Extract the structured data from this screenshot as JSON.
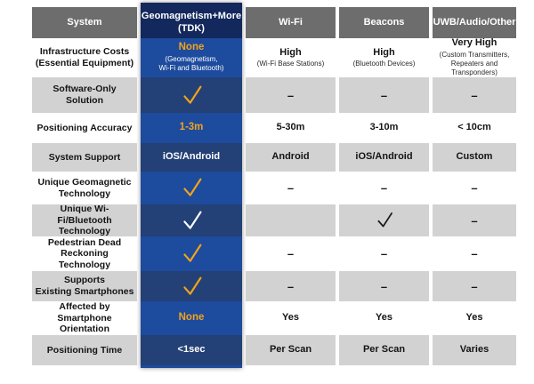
{
  "colors": {
    "header_gray": "#6d6d6d",
    "tdk_navy": "#13285c",
    "tdk_blue_light": "#1d4b9e",
    "tdk_blue_dark": "#234176",
    "row_gray": "#d2d2d2",
    "row_white": "#ffffff",
    "accent_orange": "#f2a31b",
    "text_dark": "#141414",
    "check_orange": "#f2a31b",
    "check_white": "#ffffff",
    "check_black": "#1a1a1a"
  },
  "dash_glyph": "–",
  "chart_data": {
    "type": "table",
    "columns": [
      {
        "id": "system",
        "label": "System"
      },
      {
        "id": "tdk",
        "label": "Geomagnetism+More\n(TDK)"
      },
      {
        "id": "wifi",
        "label": "Wi-Fi"
      },
      {
        "id": "beacons",
        "label": "Beacons"
      },
      {
        "id": "uwb",
        "label": "UWB/Audio/Other"
      }
    ],
    "rows": [
      {
        "label": "Infrastructure Costs\n(Essential Equipment)",
        "cells": [
          {
            "type": "text",
            "value": "None",
            "accent": true,
            "note": "(Geomagnetism,\nWi-Fi and Bluetooth)"
          },
          {
            "type": "text",
            "value": "High",
            "note": "(Wi-Fi Base Stations)"
          },
          {
            "type": "text",
            "value": "High",
            "note": "(Bluetooth Devices)"
          },
          {
            "type": "text",
            "value": "Very High",
            "note": "(Custom Transmitters,\nRepeaters and Transponders)"
          }
        ]
      },
      {
        "label": "Software-Only Solution",
        "cells": [
          {
            "type": "check",
            "color": "orange"
          },
          {
            "type": "dash"
          },
          {
            "type": "dash"
          },
          {
            "type": "dash"
          }
        ]
      },
      {
        "label": "Positioning Accuracy",
        "cells": [
          {
            "type": "text",
            "value": "1-3m",
            "accent": true
          },
          {
            "type": "text",
            "value": "5-30m"
          },
          {
            "type": "text",
            "value": "3-10m"
          },
          {
            "type": "text",
            "value": "< 10cm"
          }
        ]
      },
      {
        "label": "System Support",
        "cells": [
          {
            "type": "text",
            "value": "iOS/Android"
          },
          {
            "type": "text",
            "value": "Android"
          },
          {
            "type": "text",
            "value": "iOS/Android"
          },
          {
            "type": "text",
            "value": "Custom"
          }
        ]
      },
      {
        "label": "Unique Geomagnetic\nTechnology",
        "cells": [
          {
            "type": "check",
            "color": "orange"
          },
          {
            "type": "dash"
          },
          {
            "type": "dash"
          },
          {
            "type": "dash"
          }
        ]
      },
      {
        "label": "Unique Wi-Fi/Bluetooth\nTechnology",
        "cells": [
          {
            "type": "check",
            "color": "white"
          },
          {
            "type": "empty"
          },
          {
            "type": "check",
            "color": "black"
          },
          {
            "type": "dash"
          }
        ]
      },
      {
        "label": "Pedestrian Dead\nReckoning Technology",
        "cells": [
          {
            "type": "check",
            "color": "orange"
          },
          {
            "type": "dash"
          },
          {
            "type": "dash"
          },
          {
            "type": "dash"
          }
        ]
      },
      {
        "label": "Supports\nExisting Smartphones",
        "cells": [
          {
            "type": "check",
            "color": "orange"
          },
          {
            "type": "dash"
          },
          {
            "type": "dash"
          },
          {
            "type": "dash"
          }
        ]
      },
      {
        "label": "Affected by Smartphone\nOrientation",
        "cells": [
          {
            "type": "text",
            "value": "None",
            "accent": true
          },
          {
            "type": "text",
            "value": "Yes"
          },
          {
            "type": "text",
            "value": "Yes"
          },
          {
            "type": "text",
            "value": "Yes"
          }
        ]
      },
      {
        "label": "Positioning Time",
        "cells": [
          {
            "type": "text",
            "value": "<1sec"
          },
          {
            "type": "text",
            "value": "Per Scan"
          },
          {
            "type": "text",
            "value": "Per Scan"
          },
          {
            "type": "text",
            "value": "Varies"
          }
        ]
      }
    ]
  }
}
